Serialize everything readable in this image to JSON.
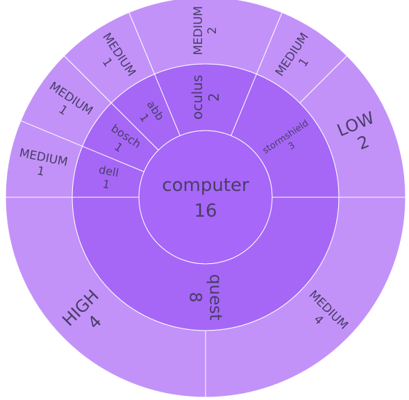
{
  "chart_data": {
    "type": "sunburst",
    "colors": {
      "center": "#a767f8",
      "ring1": "#a667f7",
      "ring2": "#c292f9",
      "stroke": "#ffffff",
      "text": "#4a3d66"
    },
    "root": {
      "name": "computer",
      "value": 16,
      "label": "computer",
      "value_label": "16"
    },
    "nodes": [
      {
        "id": "quest",
        "name": "quest",
        "value": 8,
        "label": "quest",
        "value_label": "8",
        "children": [
          {
            "id": "quest-medium",
            "name": "MEDIUM",
            "value": 4,
            "label": "MEDIUM",
            "value_label": "4"
          },
          {
            "id": "quest-high",
            "name": "HIGH",
            "value": 4,
            "label": "HIGH",
            "value_label": "4"
          }
        ]
      },
      {
        "id": "dell",
        "name": "dell",
        "value": 1,
        "label": "dell",
        "value_label": "1",
        "children": [
          {
            "id": "dell-medium",
            "name": "MEDIUM",
            "value": 1,
            "label": "MEDIUM",
            "value_label": "1"
          }
        ]
      },
      {
        "id": "bosch",
        "name": "bosch",
        "value": 1,
        "label": "bosch",
        "value_label": "1",
        "children": [
          {
            "id": "bosch-medium",
            "name": "MEDIUM",
            "value": 1,
            "label": "MEDIUM",
            "value_label": "1"
          }
        ]
      },
      {
        "id": "abb",
        "name": "abb",
        "value": 1,
        "label": "abb",
        "value_label": "1",
        "children": [
          {
            "id": "abb-medium",
            "name": "MEDIUM",
            "value": 1,
            "label": "MEDIUM",
            "value_label": "1"
          }
        ]
      },
      {
        "id": "oculus",
        "name": "oculus",
        "value": 2,
        "label": "oculus",
        "value_label": "2",
        "children": [
          {
            "id": "oculus-medium",
            "name": "MEDIUM",
            "value": 2,
            "label": "MEDIUM",
            "value_label": "2"
          }
        ]
      },
      {
        "id": "stormshield",
        "name": "stormshield",
        "value": 3,
        "label": "stormshield",
        "value_label": "3",
        "children": [
          {
            "id": "stormshield-medium",
            "name": "MEDIUM",
            "value": 1,
            "label": "MEDIUM",
            "value_label": "1"
          },
          {
            "id": "stormshield-low",
            "name": "LOW",
            "value": 2,
            "label": "LOW",
            "value_label": "2"
          }
        ]
      }
    ]
  }
}
